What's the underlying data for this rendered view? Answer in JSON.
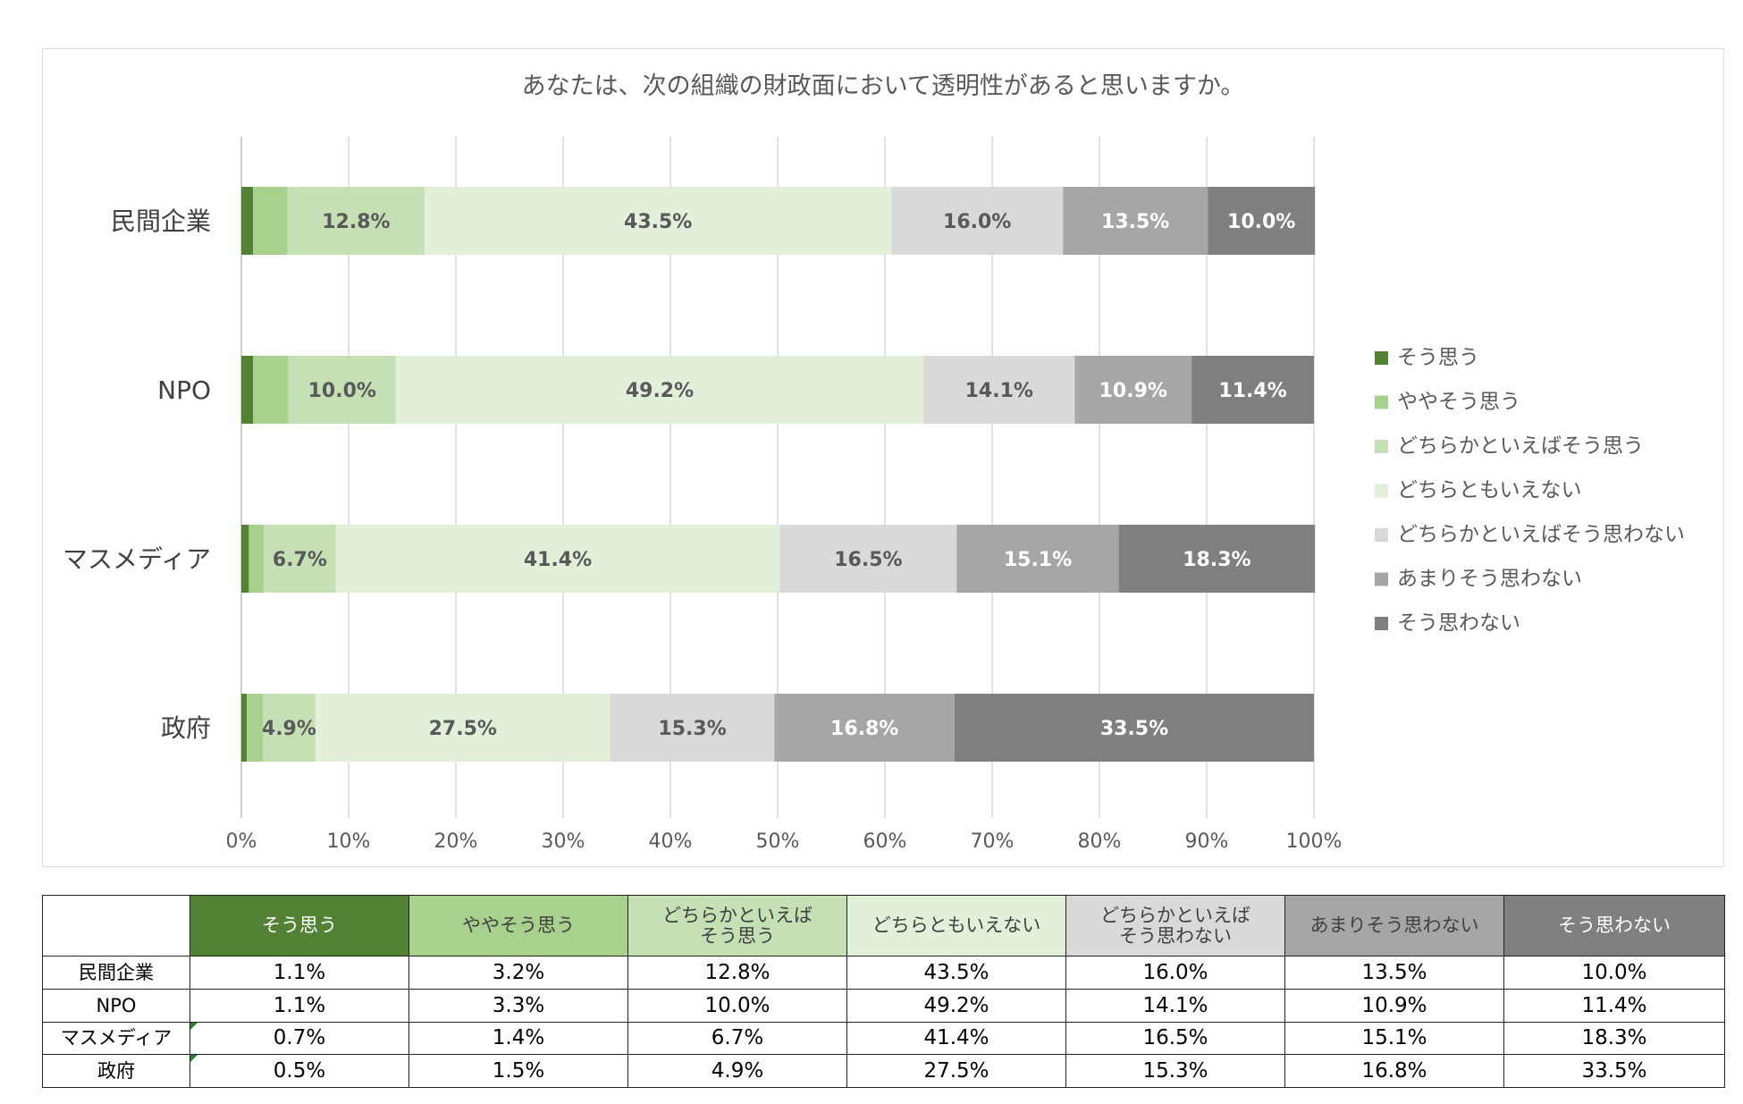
{
  "chart_data": {
    "type": "bar",
    "orientation": "horizontal",
    "stacked": true,
    "percent_stacked": true,
    "title": "あなたは、次の組織の財政面において透明性があると思いますか。",
    "categories": [
      "民間企業",
      "NPO",
      "マスメディア",
      "政府"
    ],
    "series": [
      {
        "name": "そう思う",
        "color": "#548235",
        "label_color": "#404040",
        "values": [
          1.1,
          1.1,
          0.7,
          0.5
        ]
      },
      {
        "name": "ややそう思う",
        "color": "#a9d18e",
        "label_color": "#404040",
        "values": [
          3.2,
          3.3,
          1.4,
          1.5
        ]
      },
      {
        "name": "どちらかといえばそう思う",
        "color": "#c5e0b4",
        "label_color": "#595959",
        "values": [
          12.8,
          10.0,
          6.7,
          4.9
        ]
      },
      {
        "name": "どちらともいえない",
        "color": "#e2f0d9",
        "label_color": "#595959",
        "values": [
          43.5,
          49.2,
          41.4,
          27.5
        ]
      },
      {
        "name": "どちらかといえばそう思わない",
        "color": "#d9d9d9",
        "label_color": "#595959",
        "values": [
          16.0,
          14.1,
          16.5,
          15.3
        ]
      },
      {
        "name": "あまりそう思わない",
        "color": "#a6a6a6",
        "label_color": "#ffffff",
        "values": [
          13.5,
          10.9,
          15.1,
          16.8
        ]
      },
      {
        "name": "そう思わない",
        "color": "#7f7f7f",
        "label_color": "#ffffff",
        "values": [
          10.0,
          11.4,
          18.3,
          33.5
        ]
      }
    ],
    "labeled_series": [
      2,
      3,
      4,
      5,
      6
    ],
    "xlim": [
      0,
      100
    ],
    "x_ticks": [
      "0%",
      "10%",
      "20%",
      "30%",
      "40%",
      "50%",
      "60%",
      "70%",
      "80%",
      "90%",
      "100%"
    ],
    "grid": true,
    "legend_position": "right"
  },
  "table": {
    "headers": [
      "そう思う",
      "ややそう思う",
      "どちらかといえば\nそう思う",
      "どちらともいえない",
      "どちらかといえば\nそう思わない",
      "あまりそう思わない",
      "そう思わない"
    ],
    "header_bg": [
      "#548235",
      "#a9d18e",
      "#c5e0b4",
      "#e2f0d9",
      "#d9d9d9",
      "#a6a6a6",
      "#7f7f7f"
    ],
    "header_fg": [
      "#ffffff",
      "#404040",
      "#404040",
      "#404040",
      "#404040",
      "#404040",
      "#ffffff"
    ],
    "rows": [
      {
        "label": "民間企業",
        "values": [
          "1.1%",
          "3.2%",
          "12.8%",
          "43.5%",
          "16.0%",
          "13.5%",
          "10.0%"
        ]
      },
      {
        "label": "NPO",
        "values": [
          "1.1%",
          "3.3%",
          "10.0%",
          "49.2%",
          "14.1%",
          "10.9%",
          "11.4%"
        ]
      },
      {
        "label": "マスメディア",
        "values": [
          "0.7%",
          "1.4%",
          "6.7%",
          "41.4%",
          "16.5%",
          "15.1%",
          "18.3%"
        ]
      },
      {
        "label": "政府",
        "values": [
          "0.5%",
          "1.5%",
          "4.9%",
          "27.5%",
          "15.3%",
          "16.8%",
          "33.5%"
        ]
      }
    ]
  }
}
